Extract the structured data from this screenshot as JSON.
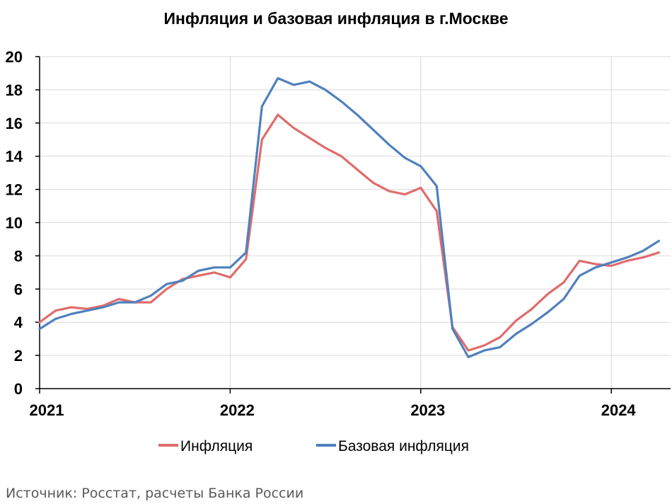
{
  "chart_data": {
    "type": "line",
    "title": "Инфляция и базовая инфляция в г.Москве",
    "xlabel": "",
    "ylabel": "",
    "ylim": [
      0,
      20
    ],
    "yticks": [
      "0",
      "2",
      "4",
      "6",
      "8",
      "10",
      "12",
      "14",
      "16",
      "18",
      "20"
    ],
    "xticks": [
      "2021",
      "2022",
      "2023",
      "2024"
    ],
    "x": [
      "2021-01",
      "2021-02",
      "2021-03",
      "2021-04",
      "2021-05",
      "2021-06",
      "2021-07",
      "2021-08",
      "2021-09",
      "2021-10",
      "2021-11",
      "2021-12",
      "2022-01",
      "2022-02",
      "2022-03",
      "2022-04",
      "2022-05",
      "2022-06",
      "2022-07",
      "2022-08",
      "2022-09",
      "2022-10",
      "2022-11",
      "2022-12",
      "2023-01",
      "2023-02",
      "2023-03",
      "2023-04",
      "2023-05",
      "2023-06",
      "2023-07",
      "2023-08",
      "2023-09",
      "2023-10",
      "2023-11",
      "2023-12",
      "2024-01",
      "2024-02",
      "2024-03",
      "2024-04"
    ],
    "grid": true,
    "legend_position": "bottom",
    "series": [
      {
        "name": "Инфляция",
        "color": "#e06c6c",
        "values": [
          4.0,
          4.7,
          4.9,
          4.8,
          5.0,
          5.4,
          5.2,
          5.2,
          6.0,
          6.6,
          6.8,
          7.0,
          6.7,
          7.8,
          15.0,
          16.5,
          15.7,
          15.1,
          14.5,
          14.0,
          13.2,
          12.4,
          11.9,
          11.7,
          12.1,
          10.7,
          3.7,
          2.3,
          2.6,
          3.1,
          4.1,
          4.8,
          5.7,
          6.4,
          7.7,
          7.5,
          7.4,
          7.7,
          7.9,
          8.2
        ]
      },
      {
        "name": "Базовая инфляция",
        "color": "#4f81bd",
        "values": [
          3.6,
          4.2,
          4.5,
          4.7,
          4.9,
          5.2,
          5.2,
          5.6,
          6.3,
          6.5,
          7.1,
          7.3,
          7.3,
          8.2,
          17.0,
          18.7,
          18.3,
          18.5,
          18.0,
          17.3,
          16.5,
          15.6,
          14.7,
          13.9,
          13.4,
          12.2,
          3.6,
          1.9,
          2.3,
          2.5,
          3.3,
          3.9,
          4.6,
          5.4,
          6.8,
          7.3,
          7.6,
          7.9,
          8.3,
          8.9
        ]
      }
    ],
    "source": "Источник: Росстат, расчеты Банка России"
  }
}
